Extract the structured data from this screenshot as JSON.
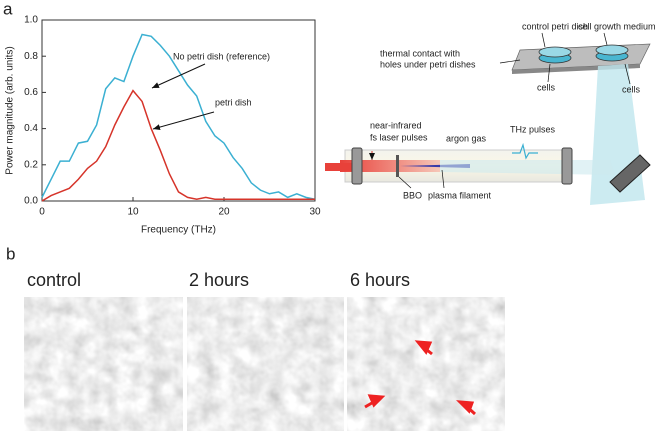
{
  "panel_labels": [
    "a",
    "b"
  ],
  "chart_data": {
    "type": "line",
    "xlabel": "Frequency (THz)",
    "ylabel": "Power magnitude (arb. units)",
    "x": [
      0,
      1,
      2,
      3,
      4,
      5,
      6,
      7,
      8,
      9,
      10,
      11,
      12,
      13,
      14,
      15,
      16,
      17,
      18,
      19,
      20,
      21,
      22,
      23,
      24,
      25,
      26,
      27,
      28,
      29,
      30
    ],
    "series": [
      {
        "name": "No petri dish (reference)",
        "color": "#3bb0d2",
        "values": [
          0.02,
          0.12,
          0.22,
          0.22,
          0.32,
          0.33,
          0.42,
          0.62,
          0.68,
          0.66,
          0.8,
          0.92,
          0.91,
          0.86,
          0.8,
          0.72,
          0.64,
          0.58,
          0.44,
          0.36,
          0.32,
          0.24,
          0.18,
          0.1,
          0.06,
          0.04,
          0.05,
          0.02,
          0.04,
          0.02,
          0.01
        ]
      },
      {
        "name": "petri dish",
        "color": "#d6342a",
        "values": [
          0,
          0.03,
          0.05,
          0.07,
          0.12,
          0.18,
          0.22,
          0.3,
          0.42,
          0.52,
          0.61,
          0.55,
          0.4,
          0.28,
          0.15,
          0.05,
          0.02,
          0.01,
          0.02,
          0.01,
          0.01,
          0.01,
          0.01,
          0.01,
          0.01,
          0.01,
          0.01,
          0.01,
          0.01,
          0.01,
          0.01
        ]
      }
    ],
    "xlim": [
      0,
      30
    ],
    "xticks": [
      0,
      10,
      20,
      30
    ],
    "ylim": [
      0,
      1
    ],
    "yticks": [
      {
        "value": 0,
        "label": "0.0"
      },
      0.2,
      0.4,
      0.6,
      0.8,
      {
        "value": 1,
        "label": "1.0"
      }
    ]
  },
  "diagram": {
    "labels": [
      "control petri dish",
      "cell growth medium",
      "thermal contact with",
      "holes under petri dishes",
      "cells",
      "cells",
      "near-infrared",
      "fs laser pulses",
      "argon gas",
      "THz pulses",
      "BBO",
      "plasma filament"
    ]
  },
  "micrographs": [
    "control",
    "2 hours",
    "6 hours"
  ]
}
